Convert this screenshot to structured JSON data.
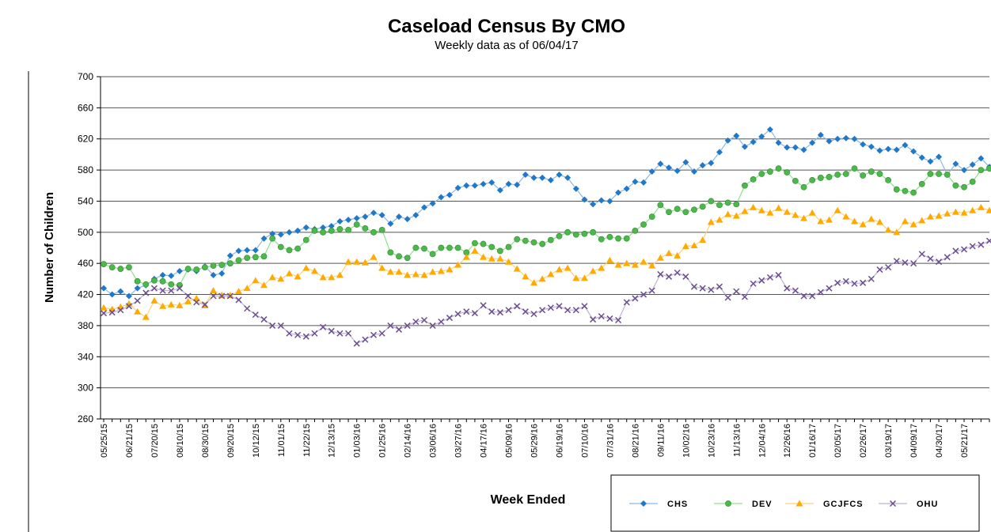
{
  "chart_data": {
    "type": "line",
    "title": "Caseload Census By CMO",
    "subtitle": "Weekly data as of 06/04/17",
    "y_label": "Number of Children",
    "x_label": "Week Ended",
    "ylim": [
      260,
      700
    ],
    "yticks": [
      260,
      300,
      340,
      380,
      420,
      460,
      500,
      540,
      580,
      620,
      660,
      700
    ],
    "grid": true,
    "categories": [
      "05/25/15",
      null,
      null,
      "06/21/15",
      null,
      null,
      "07/20/15",
      null,
      null,
      "08/10/15",
      null,
      null,
      "08/30/15",
      null,
      null,
      "09/20/15",
      null,
      null,
      "10/12/15",
      null,
      null,
      "11/01/15",
      null,
      null,
      "11/22/15",
      null,
      null,
      "12/13/15",
      null,
      null,
      "01/03/16",
      null,
      null,
      "01/25/16",
      null,
      null,
      "02/14/16",
      null,
      null,
      "03/06/16",
      null,
      null,
      "03/27/16",
      null,
      null,
      "04/17/16",
      null,
      null,
      "05/09/16",
      null,
      null,
      "05/29/16",
      null,
      null,
      "06/19/16",
      null,
      null,
      "07/10/16",
      null,
      null,
      "07/31/16",
      null,
      null,
      "08/21/16",
      null,
      null,
      "09/11/16",
      null,
      null,
      "10/02/16",
      null,
      null,
      "10/23/16",
      null,
      null,
      "11/13/16",
      null,
      null,
      "12/04/16",
      null,
      null,
      "12/26/16",
      null,
      null,
      "01/16/17",
      null,
      null,
      "02/05/17",
      null,
      null,
      "02/26/17",
      null,
      null,
      "03/19/17",
      null,
      null,
      "04/09/17",
      null,
      null,
      "04/30/17",
      null,
      null,
      "05/21/17",
      null,
      null,
      null
    ],
    "series": [
      {
        "name": "CHS",
        "color": "#1f78c8",
        "line_color": "#8cb8e8",
        "marker": "diamond",
        "values": [
          428,
          420,
          424,
          418,
          428,
          432,
          440,
          445,
          444,
          450,
          452,
          450,
          456,
          445,
          447,
          470,
          476,
          477,
          477,
          492,
          498,
          497,
          500,
          502,
          506,
          504,
          506,
          508,
          514,
          516,
          518,
          520,
          525,
          522,
          511,
          520,
          517,
          522,
          532,
          537,
          545,
          548,
          557,
          560,
          560,
          562,
          564,
          554,
          562,
          561,
          574,
          570,
          570,
          567,
          574,
          570,
          556,
          542,
          536,
          541,
          540,
          551,
          556,
          565,
          564,
          578,
          588,
          583,
          579,
          590,
          578,
          586,
          589,
          603,
          618,
          624,
          610,
          616,
          623,
          632,
          615,
          609,
          609,
          606,
          615,
          625,
          617,
          620,
          621,
          620,
          613,
          610,
          605,
          607,
          606,
          612,
          604,
          596,
          591,
          597,
          574,
          588,
          580,
          587,
          595,
          584
        ]
      },
      {
        "name": "DEV",
        "color": "#4cb84c",
        "line_color": "#8fe08f",
        "marker": "circle",
        "values": [
          459,
          455,
          453,
          455,
          437,
          433,
          438,
          437,
          433,
          432,
          453,
          452,
          455,
          457,
          458,
          460,
          464,
          467,
          468,
          469,
          492,
          481,
          477,
          479,
          490,
          502,
          500,
          502,
          504,
          503,
          510,
          505,
          500,
          503,
          474,
          469,
          467,
          480,
          479,
          472,
          480,
          480,
          480,
          474,
          486,
          485,
          481,
          476,
          481,
          491,
          489,
          487,
          485,
          490,
          495,
          500,
          497,
          498,
          500,
          491,
          494,
          492,
          492,
          502,
          510,
          520,
          535,
          526,
          530,
          526,
          529,
          533,
          540,
          535,
          538,
          536,
          560,
          568,
          575,
          578,
          582,
          577,
          566,
          558,
          567,
          570,
          571,
          574,
          575,
          582,
          573,
          578,
          575,
          567,
          555,
          553,
          551,
          562,
          575,
          575,
          574,
          560,
          558,
          565,
          580,
          582
        ]
      },
      {
        "name": "GCJFCS",
        "color": "#ffaa00",
        "line_color": "#ffd27a",
        "marker": "triangle",
        "values": [
          403,
          401,
          404,
          408,
          398,
          391,
          412,
          405,
          407,
          406,
          411,
          415,
          406,
          425,
          419,
          419,
          424,
          428,
          438,
          432,
          442,
          440,
          447,
          443,
          454,
          450,
          442,
          442,
          445,
          462,
          462,
          461,
          468,
          454,
          449,
          449,
          445,
          446,
          445,
          449,
          450,
          452,
          458,
          468,
          476,
          468,
          466,
          466,
          462,
          453,
          443,
          435,
          440,
          446,
          452,
          454,
          441,
          441,
          450,
          454,
          464,
          458,
          460,
          458,
          462,
          457,
          467,
          473,
          470,
          482,
          483,
          490,
          513,
          516,
          523,
          521,
          527,
          532,
          528,
          525,
          531,
          526,
          522,
          518,
          525,
          514,
          516,
          528,
          520,
          514,
          510,
          517,
          513,
          503,
          500,
          514,
          510,
          515,
          520,
          521,
          524,
          526,
          525,
          528,
          532,
          528
        ]
      },
      {
        "name": "OHU",
        "color": "#6a4f8c",
        "line_color": "#c0aede",
        "marker": "x",
        "values": [
          396,
          397,
          400,
          405,
          412,
          422,
          428,
          425,
          425,
          428,
          418,
          410,
          407,
          418,
          418,
          418,
          413,
          402,
          394,
          388,
          380,
          380,
          370,
          368,
          366,
          370,
          378,
          373,
          370,
          370,
          357,
          362,
          368,
          370,
          380,
          375,
          380,
          385,
          387,
          380,
          385,
          390,
          395,
          398,
          396,
          406,
          398,
          397,
          400,
          405,
          398,
          395,
          400,
          403,
          405,
          400,
          400,
          405,
          388,
          392,
          389,
          387,
          410,
          415,
          420,
          425,
          446,
          443,
          448,
          443,
          430,
          428,
          426,
          430,
          416,
          424,
          417,
          434,
          438,
          442,
          445,
          428,
          425,
          418,
          418,
          423,
          428,
          435,
          437,
          434,
          435,
          440,
          452,
          455,
          463,
          461,
          460,
          472,
          466,
          462,
          468,
          476,
          478,
          482,
          484,
          489
        ]
      }
    ]
  }
}
